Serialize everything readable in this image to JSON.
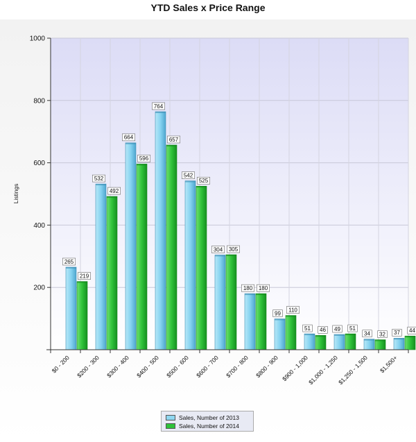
{
  "chart_data": {
    "type": "bar",
    "title": "YTD Sales x Price Range",
    "ylabel": "Listings",
    "xlabel": "",
    "ylim": [
      0,
      1000
    ],
    "yticks": [
      200,
      400,
      600,
      800,
      1000
    ],
    "grid": true,
    "legend_position": "bottom-center",
    "categories": [
      "$0 - 200",
      "$200 - 300",
      "$300 - 400",
      "$400 - 500",
      "$500 - 600",
      "$600 - 700",
      "$700 - 800",
      "$800 - 900",
      "$900 - 1,000",
      "$1,000 - 1,250",
      "$1,250 - 1,500",
      "$1,500+"
    ],
    "series": [
      {
        "name": "Sales, Number of 2013",
        "color": "#7fd0ec",
        "values": [
          265,
          532,
          664,
          764,
          542,
          304,
          180,
          99,
          51,
          49,
          34,
          37
        ]
      },
      {
        "name": "Sales, Number of 2014",
        "color": "#2fc23a",
        "values": [
          219,
          492,
          596,
          657,
          525,
          305,
          180,
          110,
          46,
          51,
          32,
          44
        ]
      }
    ]
  }
}
